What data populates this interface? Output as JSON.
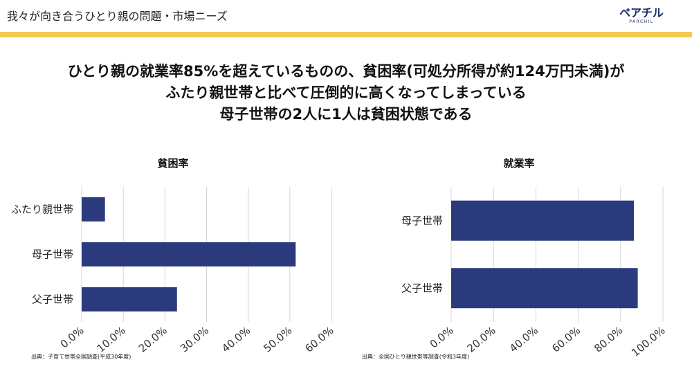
{
  "header": {
    "title": "我々が向き合うひとり親の問題・市場ニーズ",
    "logo_text": "ペアチル",
    "logo_subtext": "PARCHIL"
  },
  "headline": {
    "lines": [
      "ひとり親の就業率85%を超えているものの、貧困率(可処分所得が約124万円未満)が",
      "ふたり親世帯と比べて圧倒的に高くなってしまっている",
      "母子世帯の2人に1人は貧困状態である"
    ]
  },
  "colors": {
    "accent_bar": "#f2c94c",
    "bar": "#2b3a7c",
    "grid": "#d6d6d6",
    "logo": "#1f2c6b"
  },
  "chart_data": [
    {
      "type": "bar",
      "orientation": "horizontal",
      "title": "貧困率",
      "categories": [
        "ふたり親世帯",
        "母子世帯",
        "父子世帯"
      ],
      "values": [
        5.6,
        51.4,
        22.9
      ],
      "xlim": [
        0,
        60
      ],
      "xticks": [
        "0.0%",
        "10.0%",
        "20.0%",
        "30.0%",
        "40.0%",
        "50.0%",
        "60.0%"
      ],
      "grid": true,
      "source": "出典：子育て世帯全国調査(平成30年度)"
    },
    {
      "type": "bar",
      "orientation": "horizontal",
      "title": "就業率",
      "categories": [
        "母子世帯",
        "父子世帯"
      ],
      "values": [
        86.3,
        88.1
      ],
      "xlim": [
        0,
        100
      ],
      "xticks": [
        "0.0%",
        "20.0%",
        "40.0%",
        "60.0%",
        "80.0%",
        "100.0%"
      ],
      "grid": true,
      "source": "出典：全国ひとり親世帯等調査(令和3年度)"
    }
  ]
}
